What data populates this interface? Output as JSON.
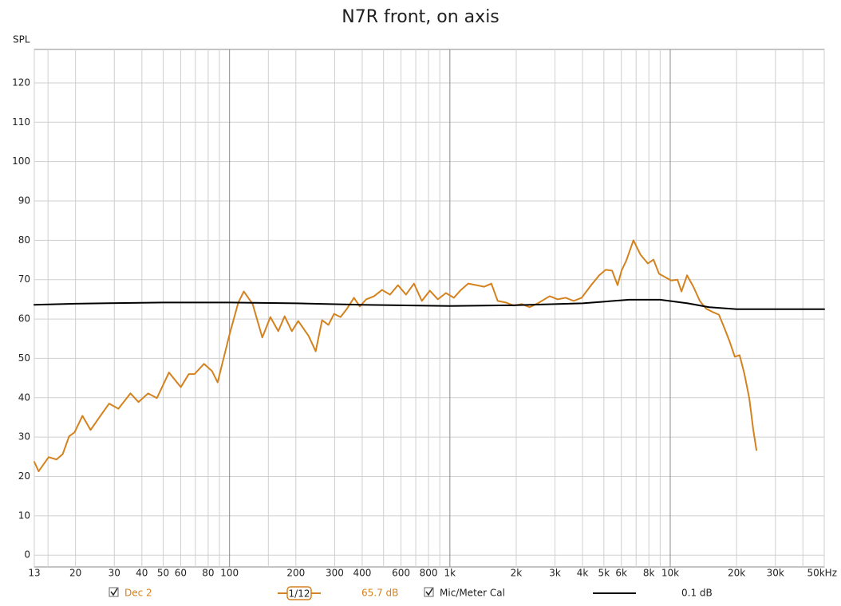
{
  "chart_data": {
    "type": "line",
    "title": "N7R front, on axis",
    "y_label": "SPL",
    "xscale": "log",
    "grid": true,
    "xlim": [
      13,
      50000
    ],
    "ylim": [
      -3,
      128.5
    ],
    "yticks": [
      0,
      10,
      20,
      30,
      40,
      50,
      60,
      70,
      80,
      90,
      100,
      110,
      120
    ],
    "xticks": [
      13,
      20,
      30,
      40,
      50,
      60,
      80,
      100,
      200,
      300,
      400,
      600,
      800,
      {
        "value": 1000,
        "label": "1k"
      },
      {
        "value": 2000,
        "label": "2k"
      },
      {
        "value": 3000,
        "label": "3k"
      },
      {
        "value": 4000,
        "label": "4k"
      },
      {
        "value": 5000,
        "label": "5k"
      },
      {
        "value": 6000,
        "label": "6k"
      },
      {
        "value": 8000,
        "label": "8k"
      },
      {
        "value": 10000,
        "label": "10k"
      },
      {
        "value": 20000,
        "label": "20k"
      },
      {
        "value": 30000,
        "label": "30k"
      },
      {
        "value": 50000,
        "label": "50kHz"
      }
    ],
    "xgrid_minor": [
      15,
      70,
      90,
      150,
      500,
      700,
      900,
      7000,
      9000,
      40000
    ],
    "series": [
      {
        "name": "Dec 2",
        "color": "#d4821e",
        "smoothing": "1/12",
        "level": "65.7 dB",
        "x": [
          13,
          13.6,
          15.1,
          16.4,
          17.5,
          18.7,
          19.8,
          21.5,
          23.4,
          25.5,
          28.4,
          31.3,
          35.5,
          38.6,
          42.7,
          46.8,
          53.1,
          60.1,
          65.3,
          69.3,
          76.6,
          83.2,
          88.3,
          100,
          109.6,
          116.1,
          127.3,
          140.8,
          153.2,
          166.4,
          177.8,
          191.7,
          205,
          228.5,
          246,
          263,
          281,
          298,
          319,
          341,
          367,
          390,
          417,
          453,
          492,
          535,
          581,
          632,
          687,
          746,
          811,
          882,
          959,
          1042,
          1114,
          1211,
          1318,
          1432,
          1542,
          1648,
          1794,
          1950,
          2119,
          2302,
          2506,
          2838,
          3084,
          3351,
          3647,
          3963,
          4376,
          4762,
          5093,
          5445,
          5768,
          6013,
          6324,
          6808,
          7339,
          7919,
          8395,
          8897,
          9510,
          10090,
          10786,
          11246,
          11920,
          12740,
          13620,
          14560,
          15700,
          16630,
          17500,
          18540,
          19640,
          20650,
          21720,
          22840,
          23820,
          24620
        ],
        "values": [
          23.7,
          21.3,
          24.9,
          24.3,
          25.7,
          30.2,
          31.2,
          35.4,
          31.8,
          34.8,
          38.5,
          37.2,
          41.1,
          38.9,
          41.1,
          39.9,
          46.4,
          42.7,
          46.0,
          46.0,
          48.6,
          46.8,
          43.9,
          56.1,
          64.2,
          67.0,
          63.8,
          55.3,
          60.5,
          56.9,
          60.7,
          56.9,
          59.5,
          55.7,
          51.8,
          59.7,
          58.5,
          61.3,
          60.5,
          62.6,
          65.4,
          63.2,
          65.0,
          65.8,
          67.4,
          66.2,
          68.6,
          66.2,
          69.0,
          64.6,
          67.2,
          65.0,
          66.6,
          65.4,
          67.2,
          69.0,
          68.6,
          68.2,
          69.0,
          64.6,
          64.2,
          63.4,
          63.8,
          63.0,
          64.0,
          65.8,
          65.0,
          65.4,
          64.6,
          65.4,
          68.6,
          71.1,
          72.5,
          72.3,
          68.6,
          72.3,
          74.9,
          80.0,
          76.3,
          74.1,
          75.1,
          71.5,
          70.6,
          69.8,
          70.0,
          67.0,
          71.1,
          68.2,
          64.6,
          62.6,
          61.7,
          61.1,
          58.1,
          54.5,
          50.4,
          50.8,
          46.0,
          39.9,
          31.8,
          26.7
        ]
      },
      {
        "name": "Mic/Meter Cal",
        "color": "#000000",
        "level": "0.1 dB",
        "x": [
          13,
          20,
          50,
          100,
          200,
          400,
          1000,
          2000,
          4000,
          6500,
          9000,
          12000,
          15000,
          20000,
          50000
        ],
        "values": [
          63.6,
          63.9,
          64.2,
          64.2,
          64.0,
          63.6,
          63.3,
          63.5,
          64.0,
          64.9,
          64.9,
          64.0,
          63.0,
          62.5,
          62.5
        ]
      }
    ]
  }
}
